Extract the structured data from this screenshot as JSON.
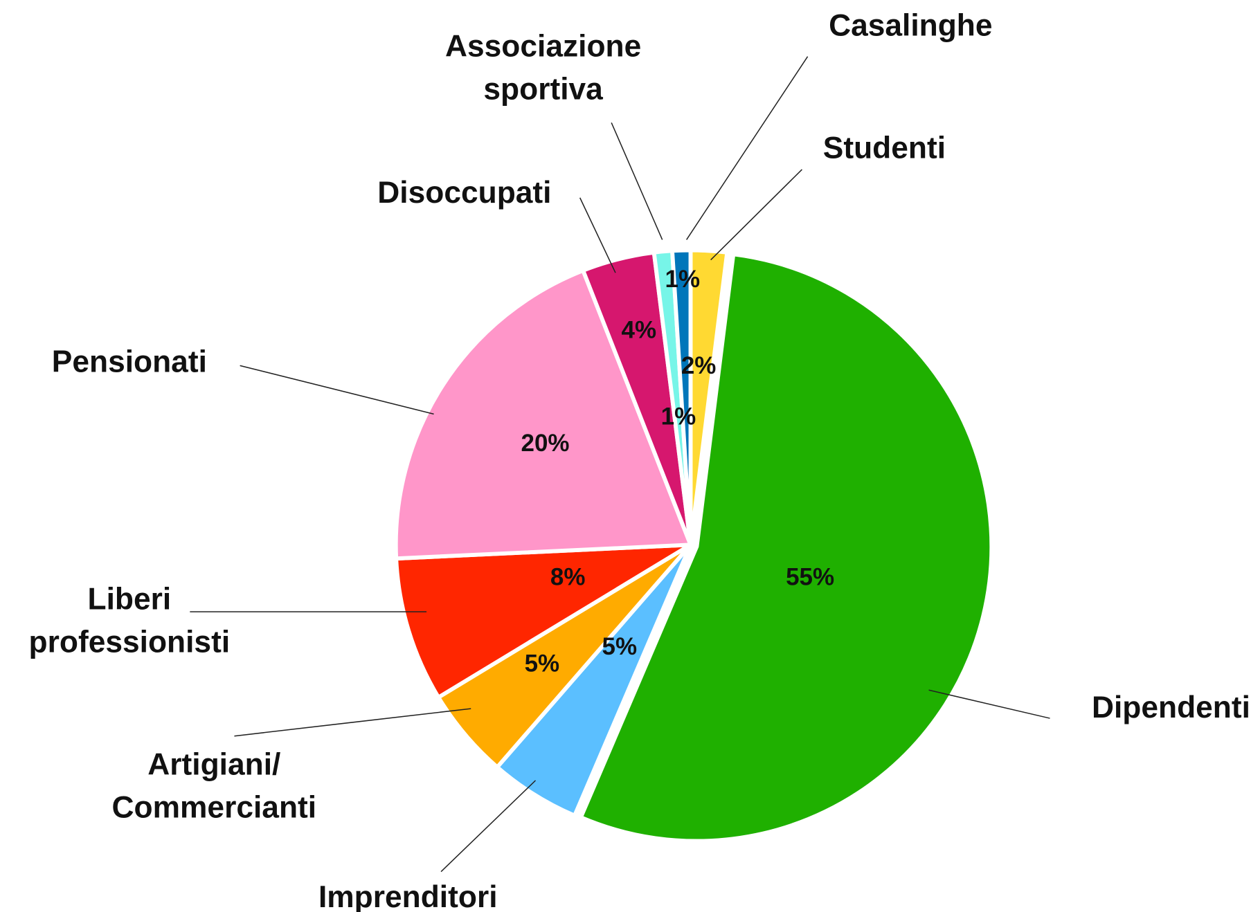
{
  "chart_data": {
    "type": "pie",
    "categories": [
      "Studenti",
      "Dipendenti",
      "Imprenditori",
      "Artigiani/ Commercianti",
      "Liberi professionisti",
      "Pensionati",
      "Disoccupati",
      "Associazione sportiva",
      "Casalinghe"
    ],
    "values": [
      2,
      55,
      5,
      5,
      8,
      20,
      4,
      1,
      1
    ],
    "value_labels": [
      "2%",
      "55%",
      "5%",
      "5%",
      "8%",
      "20%",
      "4%",
      "1%",
      "1%"
    ],
    "colors": [
      "#ffd932",
      "#1fb000",
      "#5bbfff",
      "#ffab00",
      "#ff2600",
      "#ff96c9",
      "#d6176e",
      "#77f5e8",
      "#0076ba"
    ]
  }
}
